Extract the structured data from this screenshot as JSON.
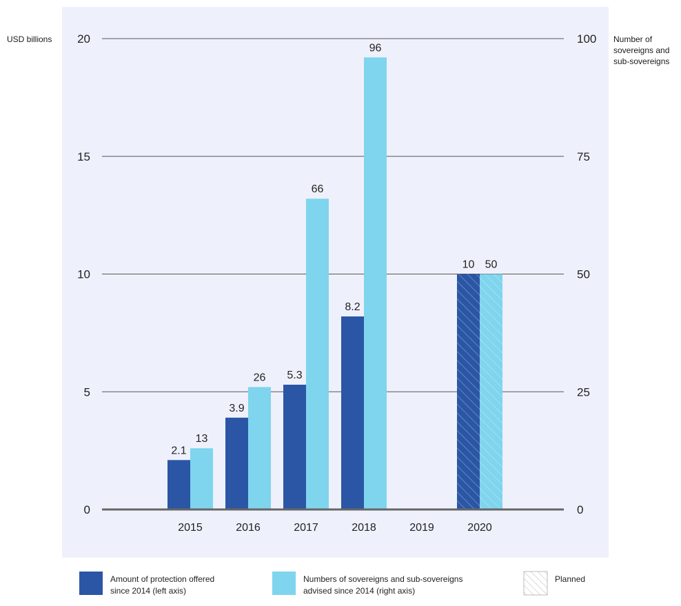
{
  "chart_data": {
    "type": "bar",
    "categories": [
      "2015",
      "2016",
      "2017",
      "2018",
      "2019",
      "2020"
    ],
    "left_axis": {
      "label": "USD billions",
      "ticks": [
        "0",
        "5",
        "10",
        "15",
        "20"
      ],
      "ylim": [
        0,
        20
      ]
    },
    "right_axis": {
      "label_lines": [
        "Number of",
        "sovereigns and",
        "sub-sovereigns"
      ],
      "ticks": [
        "0",
        "25",
        "50",
        "75",
        "100"
      ],
      "ylim": [
        0,
        100
      ]
    },
    "series": [
      {
        "name_lines": [
          "Amount of protection offered",
          "since 2014 (left axis)"
        ],
        "axis": "left",
        "color": "#2b56a5",
        "values": [
          2.1,
          3.9,
          5.3,
          8.2,
          null,
          10
        ],
        "labels": [
          "2.1",
          "3.9",
          "5.3",
          "8.2",
          "",
          "10"
        ],
        "planned": [
          false,
          false,
          false,
          false,
          false,
          true
        ]
      },
      {
        "name_lines": [
          "Numbers of sovereigns and sub-sovereigns",
          "advised since 2014 (right axis)"
        ],
        "axis": "right",
        "color": "#7fd4ee",
        "values": [
          13,
          26,
          66,
          96,
          null,
          50
        ],
        "labels": [
          "13",
          "26",
          "66",
          "96",
          "",
          "50"
        ],
        "planned": [
          false,
          false,
          false,
          false,
          false,
          true
        ]
      }
    ],
    "planned_legend": "Planned",
    "grid": true,
    "background_color": "#eef1fb",
    "gridline_color": "#555555",
    "baseline_color": "#666666"
  }
}
